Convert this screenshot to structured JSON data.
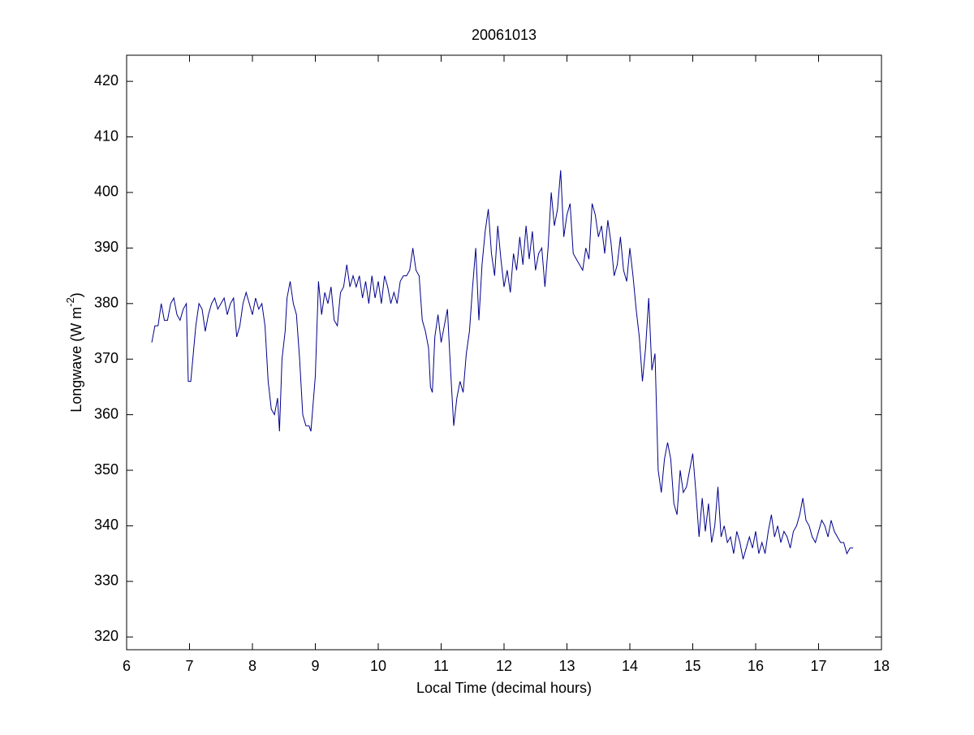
{
  "chart_data": {
    "type": "line",
    "title": "20061013",
    "xlabel": "Local Time (decimal hours)",
    "ylabel": "Longwave (W m",
    "ylabel_sup": "-2",
    "ylabel_end": ")",
    "color": "#00008b",
    "xlim": [
      6,
      18
    ],
    "xticks": [
      6,
      7,
      8,
      9,
      10,
      11,
      12,
      13,
      14,
      15,
      16,
      17,
      18
    ],
    "ylim": [
      317.7,
      424.7
    ],
    "yticks": [
      320,
      330,
      340,
      350,
      360,
      370,
      380,
      390,
      400,
      410,
      420
    ],
    "x": [
      6.4,
      6.45,
      6.5,
      6.55,
      6.6,
      6.65,
      6.7,
      6.75,
      6.8,
      6.85,
      6.9,
      6.95,
      6.98,
      7.02,
      7.1,
      7.15,
      7.2,
      7.25,
      7.3,
      7.35,
      7.4,
      7.45,
      7.5,
      7.55,
      7.6,
      7.65,
      7.7,
      7.75,
      7.8,
      7.85,
      7.9,
      7.95,
      8.0,
      8.05,
      8.1,
      8.15,
      8.2,
      8.25,
      8.3,
      8.35,
      8.4,
      8.43,
      8.47,
      8.52,
      8.55,
      8.6,
      8.65,
      8.7,
      8.75,
      8.8,
      8.85,
      8.9,
      8.93,
      9.0,
      9.05,
      9.1,
      9.15,
      9.2,
      9.25,
      9.3,
      9.35,
      9.4,
      9.45,
      9.5,
      9.55,
      9.6,
      9.65,
      9.7,
      9.75,
      9.8,
      9.85,
      9.9,
      9.95,
      10.0,
      10.05,
      10.1,
      10.15,
      10.2,
      10.25,
      10.3,
      10.35,
      10.4,
      10.45,
      10.5,
      10.55,
      10.6,
      10.65,
      10.7,
      10.75,
      10.8,
      10.83,
      10.86,
      10.9,
      10.95,
      11.0,
      11.05,
      11.1,
      11.15,
      11.2,
      11.25,
      11.3,
      11.35,
      11.4,
      11.45,
      11.5,
      11.55,
      11.6,
      11.65,
      11.7,
      11.75,
      11.8,
      11.85,
      11.9,
      11.95,
      12.0,
      12.05,
      12.1,
      12.15,
      12.2,
      12.25,
      12.3,
      12.35,
      12.4,
      12.45,
      12.5,
      12.55,
      12.6,
      12.65,
      12.7,
      12.75,
      12.8,
      12.85,
      12.9,
      12.95,
      13.0,
      13.05,
      13.1,
      13.15,
      13.2,
      13.25,
      13.3,
      13.35,
      13.4,
      13.45,
      13.5,
      13.55,
      13.6,
      13.65,
      13.7,
      13.75,
      13.8,
      13.85,
      13.9,
      13.95,
      14.0,
      14.05,
      14.1,
      14.15,
      14.2,
      14.25,
      14.3,
      14.35,
      14.4,
      14.45,
      14.5,
      14.55,
      14.6,
      14.65,
      14.7,
      14.75,
      14.8,
      14.85,
      14.9,
      14.95,
      15.0,
      15.05,
      15.1,
      15.15,
      15.2,
      15.25,
      15.3,
      15.35,
      15.4,
      15.45,
      15.5,
      15.55,
      15.6,
      15.65,
      15.7,
      15.75,
      15.8,
      15.85,
      15.9,
      15.95,
      16.0,
      16.05,
      16.1,
      16.15,
      16.2,
      16.25,
      16.3,
      16.35,
      16.4,
      16.45,
      16.5,
      16.55,
      16.6,
      16.65,
      16.7,
      16.75,
      16.8,
      16.85,
      16.9,
      16.95,
      17.0,
      17.05,
      17.1,
      17.15,
      17.2,
      17.25,
      17.3,
      17.35,
      17.4,
      17.45,
      17.5,
      17.55
    ],
    "values": [
      373,
      376,
      376,
      380,
      377,
      377,
      380,
      381,
      378,
      377,
      379,
      380,
      366,
      366,
      376,
      380,
      379,
      375,
      378,
      380,
      381,
      379,
      380,
      381,
      378,
      380,
      381,
      374,
      376,
      380,
      382,
      380,
      378,
      381,
      379,
      380,
      376,
      366,
      361,
      360,
      363,
      357,
      370,
      375,
      381,
      384,
      380,
      378,
      370,
      360,
      358,
      358,
      357,
      367,
      384,
      378,
      382,
      380,
      383,
      377,
      376,
      382,
      383,
      387,
      383,
      385,
      383,
      385,
      381,
      384,
      380,
      385,
      381,
      384,
      380,
      385,
      383,
      380,
      382,
      380,
      384,
      385,
      385,
      386,
      390,
      386,
      385,
      377,
      375,
      372,
      365,
      364,
      374,
      378,
      373,
      376,
      379,
      368,
      358,
      363,
      366,
      364,
      371,
      375,
      383,
      390,
      377,
      387,
      393,
      397,
      389,
      385,
      394,
      388,
      383,
      386,
      382,
      389,
      386,
      392,
      387,
      394,
      388,
      393,
      386,
      389,
      390,
      383,
      390,
      400,
      394,
      397,
      404,
      392,
      396,
      398,
      389,
      388,
      387,
      386,
      390,
      388,
      398,
      396,
      392,
      394,
      389,
      395,
      391,
      385,
      387,
      392,
      386,
      384,
      390,
      385,
      379,
      374,
      366,
      372,
      381,
      368,
      371,
      350,
      346,
      352,
      355,
      352,
      344,
      342,
      350,
      346,
      347,
      350,
      353,
      346,
      338,
      345,
      339,
      344,
      337,
      340,
      347,
      338,
      340,
      337,
      338,
      335,
      339,
      337,
      334,
      336,
      338,
      336,
      339,
      335,
      337,
      335,
      339,
      342,
      338,
      340,
      337,
      339,
      338,
      336,
      339,
      340,
      342,
      345,
      341,
      340,
      338,
      337,
      339,
      341,
      340,
      338,
      341,
      339,
      338,
      337,
      337,
      335,
      336,
      336
    ]
  }
}
